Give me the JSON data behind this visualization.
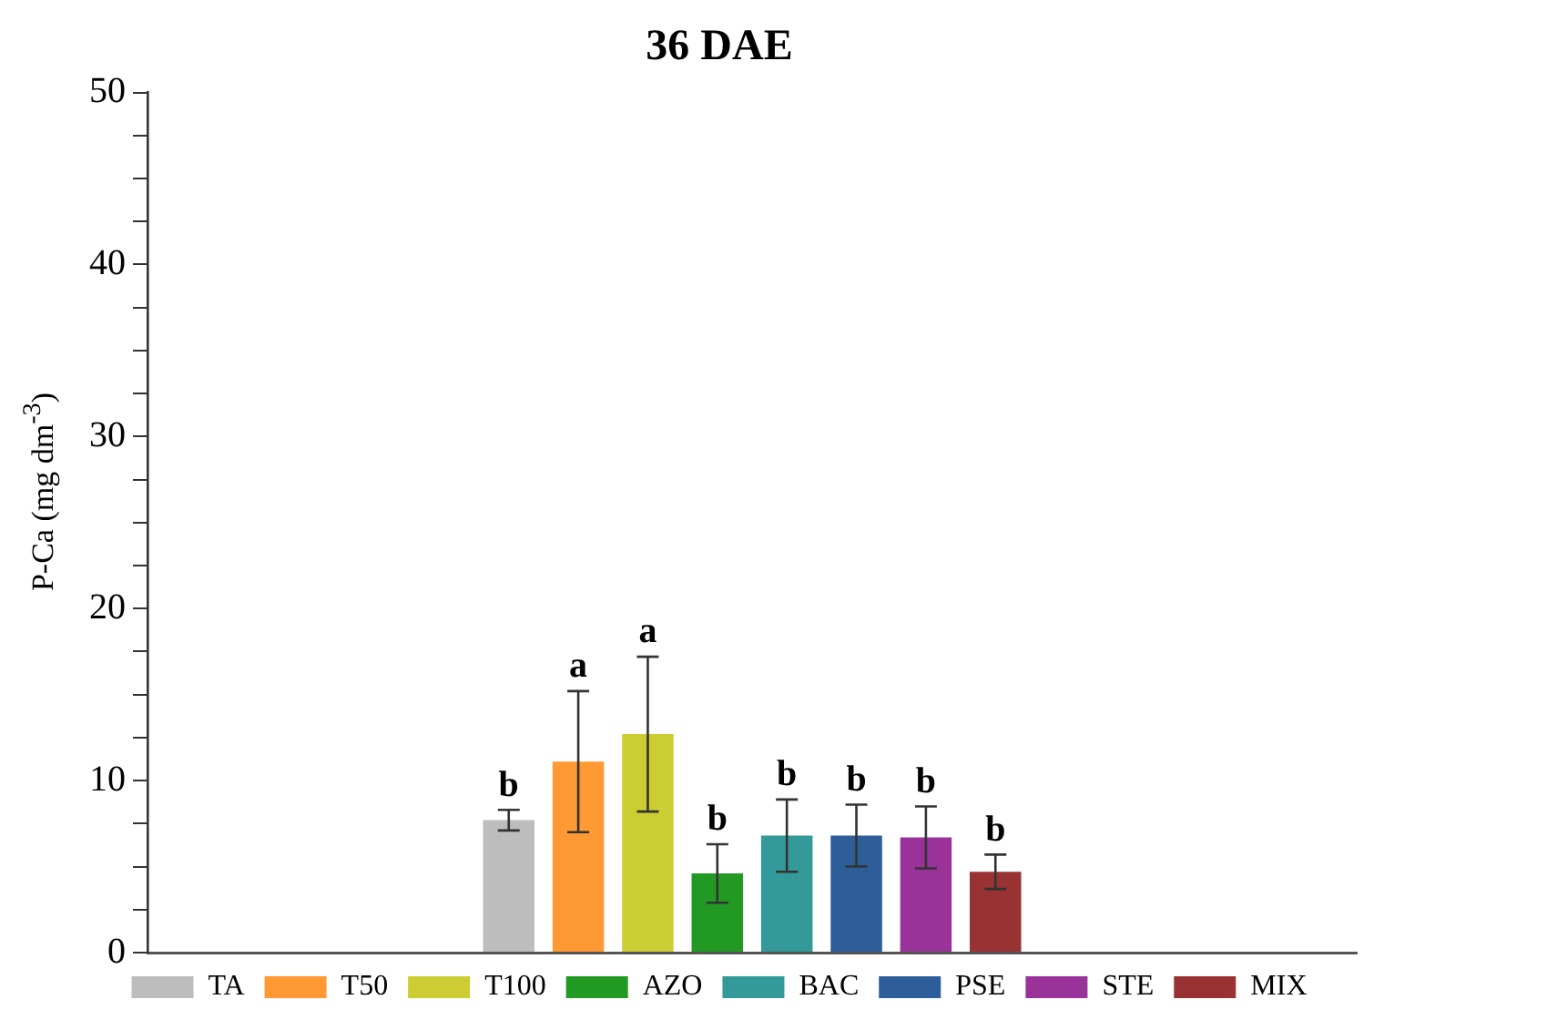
{
  "chart_data": {
    "type": "bar",
    "title": "36 DAE",
    "ylabel": "P-Ca (mg dm$^{-3}$)",
    "categories": [
      null
    ],
    "series": [
      {
        "name": "TA",
        "color": "#bdbdbd",
        "values": [
          7.7
        ],
        "errors": [
          0.6
        ],
        "value_labels": [
          "b"
        ]
      },
      {
        "name": "T50",
        "color": "#ff9933",
        "values": [
          11.1
        ],
        "errors": [
          4.1
        ],
        "value_labels": [
          "a"
        ]
      },
      {
        "name": "T100",
        "color": "#cccc33",
        "values": [
          12.7
        ],
        "errors": [
          4.5
        ],
        "value_labels": [
          "a"
        ]
      },
      {
        "name": "AZO",
        "color": "#229922",
        "values": [
          4.6
        ],
        "errors": [
          1.7
        ],
        "value_labels": [
          "b"
        ]
      },
      {
        "name": "BAC",
        "color": "#339999",
        "values": [
          6.8
        ],
        "errors": [
          2.1
        ],
        "value_labels": [
          "b"
        ]
      },
      {
        "name": "PSE",
        "color": "#2d5e99",
        "values": [
          6.8
        ],
        "errors": [
          1.8
        ],
        "value_labels": [
          "b"
        ]
      },
      {
        "name": "STE",
        "color": "#993399",
        "values": [
          6.7
        ],
        "errors": [
          1.8
        ],
        "value_labels": [
          "b"
        ]
      },
      {
        "name": "MIX",
        "color": "#993333",
        "values": [
          4.7
        ],
        "errors": [
          1.0
        ],
        "value_labels": [
          "b"
        ]
      }
    ],
    "ylim": [
      0,
      50
    ],
    "yticks": [
      0,
      {
        "value": 2.5,
        "label": null
      },
      {
        "value": 5,
        "label": null
      },
      {
        "value": 7.5,
        "label": null
      },
      10,
      {
        "value": 12.5,
        "label": null
      },
      {
        "value": 15,
        "label": null
      },
      {
        "value": 17.5,
        "label": null
      },
      20,
      {
        "value": 22.5,
        "label": null
      },
      {
        "value": 25,
        "label": null
      },
      {
        "value": 27.5,
        "label": null
      },
      30,
      {
        "value": 32.5,
        "label": null
      },
      {
        "value": 35,
        "label": null
      },
      {
        "value": 37.5,
        "label": null
      },
      40,
      {
        "value": 42.5,
        "label": null
      },
      {
        "value": 45,
        "label": null
      },
      {
        "value": 47.5,
        "label": null
      },
      50
    ],
    "tick_labels": "y",
    "grid": false,
    "legend": "bottom"
  }
}
